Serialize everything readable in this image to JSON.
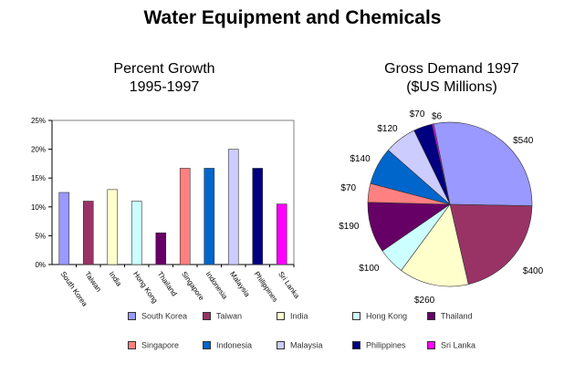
{
  "main_title": "Water Equipment and Chemicals",
  "chart_data": [
    {
      "type": "bar",
      "title": "Percent Growth\n1995-1997",
      "categories": [
        "South Korea",
        "Taiwan",
        "India",
        "Hong Kong",
        "Thailand",
        "Singapore",
        "Indonesia",
        "Malaysia",
        "Philippines",
        "Sri Lanka"
      ],
      "values": [
        12.5,
        11,
        13,
        11,
        5.5,
        16.7,
        16.7,
        20,
        16.7,
        10.5
      ],
      "ylim": [
        0,
        25
      ],
      "yticks": [
        "0%",
        "5%",
        "10%",
        "15%",
        "20%",
        "25%"
      ],
      "grid": false,
      "colors": [
        "#9999ff",
        "#993366",
        "#ffffcc",
        "#ccffff",
        "#660066",
        "#ff8080",
        "#0066cc",
        "#ccccff",
        "#000080",
        "#ff00ff"
      ]
    },
    {
      "type": "pie",
      "title": "Gross Demand 1997\n($US Millions)",
      "slices": [
        {
          "category": "South Korea",
          "value": 540,
          "label": "$540"
        },
        {
          "category": "Taiwan",
          "value": 400,
          "label": "$400"
        },
        {
          "category": "India",
          "value": 260,
          "label": "$260"
        },
        {
          "category": "Hong Kong",
          "value": 100,
          "label": "$100"
        },
        {
          "category": "Thailand",
          "value": 190,
          "label": "$190"
        },
        {
          "category": "Singapore",
          "value": 70,
          "label": "$70"
        },
        {
          "category": "Indonesia",
          "value": 140,
          "label": "$140"
        },
        {
          "category": "Malaysia",
          "value": 120,
          "label": "$120"
        },
        {
          "category": "Philippines",
          "value": 70,
          "label": "$70"
        },
        {
          "category": "Sri Lanka",
          "value": 6,
          "label": "$6"
        }
      ],
      "colors": [
        "#9999ff",
        "#993366",
        "#ffffcc",
        "#ccffff",
        "#660066",
        "#ff8080",
        "#0066cc",
        "#ccccff",
        "#000080",
        "#ff00ff"
      ]
    }
  ],
  "legend": {
    "placement": "bottom",
    "items": [
      "South Korea",
      "Taiwan",
      "India",
      "Hong Kong",
      "Thailand",
      "Singapore",
      "Indonesia",
      "Malaysia",
      "Philippines",
      "Sri Lanka"
    ]
  }
}
